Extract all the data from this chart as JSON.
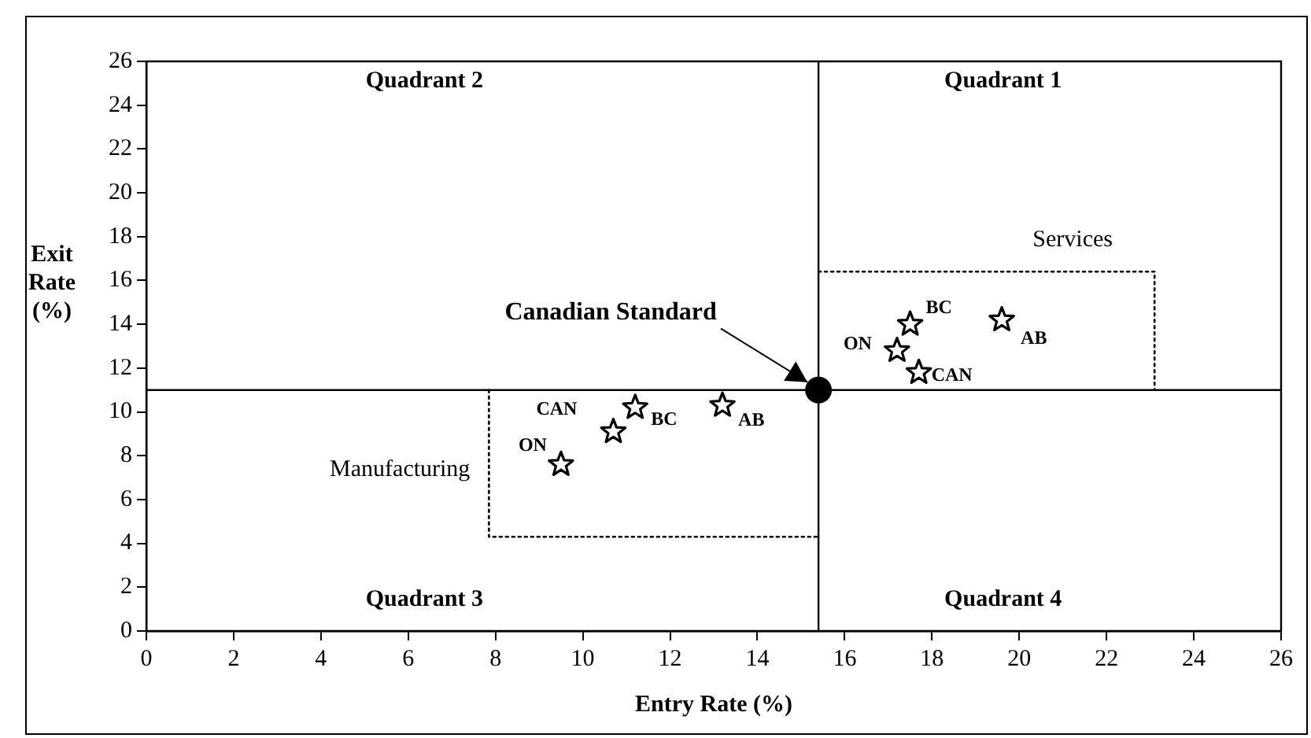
{
  "chart_data": {
    "type": "scatter",
    "xlabel": "Entry Rate (%)",
    "ylabel": "Exit Rate (%)",
    "xlim": [
      0,
      26
    ],
    "xticks": [
      0,
      2,
      4,
      6,
      8,
      10,
      12,
      14,
      16,
      18,
      20,
      22,
      24,
      26
    ],
    "ylim": [
      0,
      26
    ],
    "yticks": [
      0,
      2,
      4,
      6,
      8,
      10,
      12,
      14,
      16,
      18,
      20,
      22,
      24,
      26
    ],
    "grid": false,
    "legend": false,
    "series": [
      {
        "name": "Manufacturing",
        "type": "line",
        "color": "#000000",
        "line_style": "dotted",
        "marker": "none",
        "x": [
          7.85,
          7.85,
          15.4
        ],
        "values": [
          11,
          4.3,
          4.3
        ]
      },
      {
        "name": "Services",
        "type": "line",
        "color": "#000000",
        "line_style": "dotted",
        "marker": "none",
        "x": [
          15.4,
          23.1,
          23.1
        ],
        "values": [
          16.4,
          16.4,
          11
        ]
      },
      {
        "name": "ON",
        "color": "#000000",
        "marker": "star",
        "x": [
          9.5
        ],
        "values": [
          7.6
        ]
      },
      {
        "name": "CAN",
        "color": "#000000",
        "marker": "star",
        "x": [
          10.7
        ],
        "values": [
          9.1
        ]
      },
      {
        "name": "BC",
        "color": "#000000",
        "marker": "star",
        "x": [
          11.2
        ],
        "values": [
          10.2
        ]
      },
      {
        "name": "AB",
        "color": "#000000",
        "marker": "star",
        "x": [
          13.2
        ],
        "values": [
          10.3
        ]
      },
      {
        "name": "ON",
        "color": "#000000",
        "marker": "star",
        "x": [
          17.2
        ],
        "values": [
          12.8
        ]
      },
      {
        "name": "CAN",
        "color": "#000000",
        "marker": "star",
        "x": [
          17.7
        ],
        "values": [
          11.8
        ]
      },
      {
        "name": "BC",
        "color": "#000000",
        "marker": "star",
        "x": [
          17.5
        ],
        "values": [
          14.0
        ]
      },
      {
        "name": "AB",
        "color": "#000000",
        "marker": "star",
        "x": [
          19.6
        ],
        "values": [
          14.2
        ]
      },
      {
        "name": "Canadian Standard",
        "color": "#000000",
        "marker": "circle",
        "x": [
          15.4
        ],
        "values": [
          11
        ]
      }
    ],
    "ref_lines": [
      {
        "axis": "y",
        "value": 11,
        "color": "#000000"
      },
      {
        "axis": "x",
        "value": 15.4,
        "color": "#000000"
      }
    ],
    "annotations": [
      "Quadrant 1",
      "Quadrant 2",
      "Quadrant 3",
      "Quadrant 4"
    ]
  }
}
